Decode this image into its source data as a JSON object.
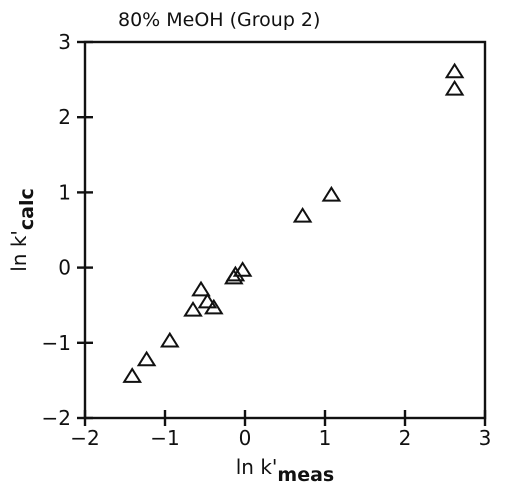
{
  "chart_data": {
    "type": "scatter",
    "title": "80% MeOH  (Group 2)",
    "xlabel": {
      "main": "ln k'",
      "sub": "meas"
    },
    "ylabel": {
      "main": "ln k'",
      "sub": "calc"
    },
    "xlim": [
      -2,
      3
    ],
    "ylim": [
      -2,
      3
    ],
    "xticks": [
      -2,
      -1,
      0,
      1,
      2,
      3
    ],
    "yticks": [
      -2,
      -1,
      0,
      1,
      2,
      3
    ],
    "x_tick_labels": [
      "−2",
      "−1",
      "0",
      "1",
      "2",
      "3"
    ],
    "y_tick_labels": [
      "−2",
      "−1",
      "0",
      "1",
      "2",
      "3"
    ],
    "grid": false,
    "marker": "open-triangle",
    "series": [
      {
        "points": [
          {
            "x": 2.62,
            "y": 2.6
          },
          {
            "x": 2.62,
            "y": 2.37
          },
          {
            "x": 1.08,
            "y": 0.96
          },
          {
            "x": 0.72,
            "y": 0.68
          },
          {
            "x": -0.03,
            "y": -0.04
          },
          {
            "x": -0.12,
            "y": -0.1
          },
          {
            "x": -0.14,
            "y": -0.14
          },
          {
            "x": -0.39,
            "y": -0.54
          },
          {
            "x": -0.47,
            "y": -0.46
          },
          {
            "x": -0.55,
            "y": -0.3
          },
          {
            "x": -0.65,
            "y": -0.57
          },
          {
            "x": -0.94,
            "y": -0.98
          },
          {
            "x": -1.23,
            "y": -1.23
          },
          {
            "x": -1.41,
            "y": -1.45
          }
        ]
      }
    ]
  }
}
